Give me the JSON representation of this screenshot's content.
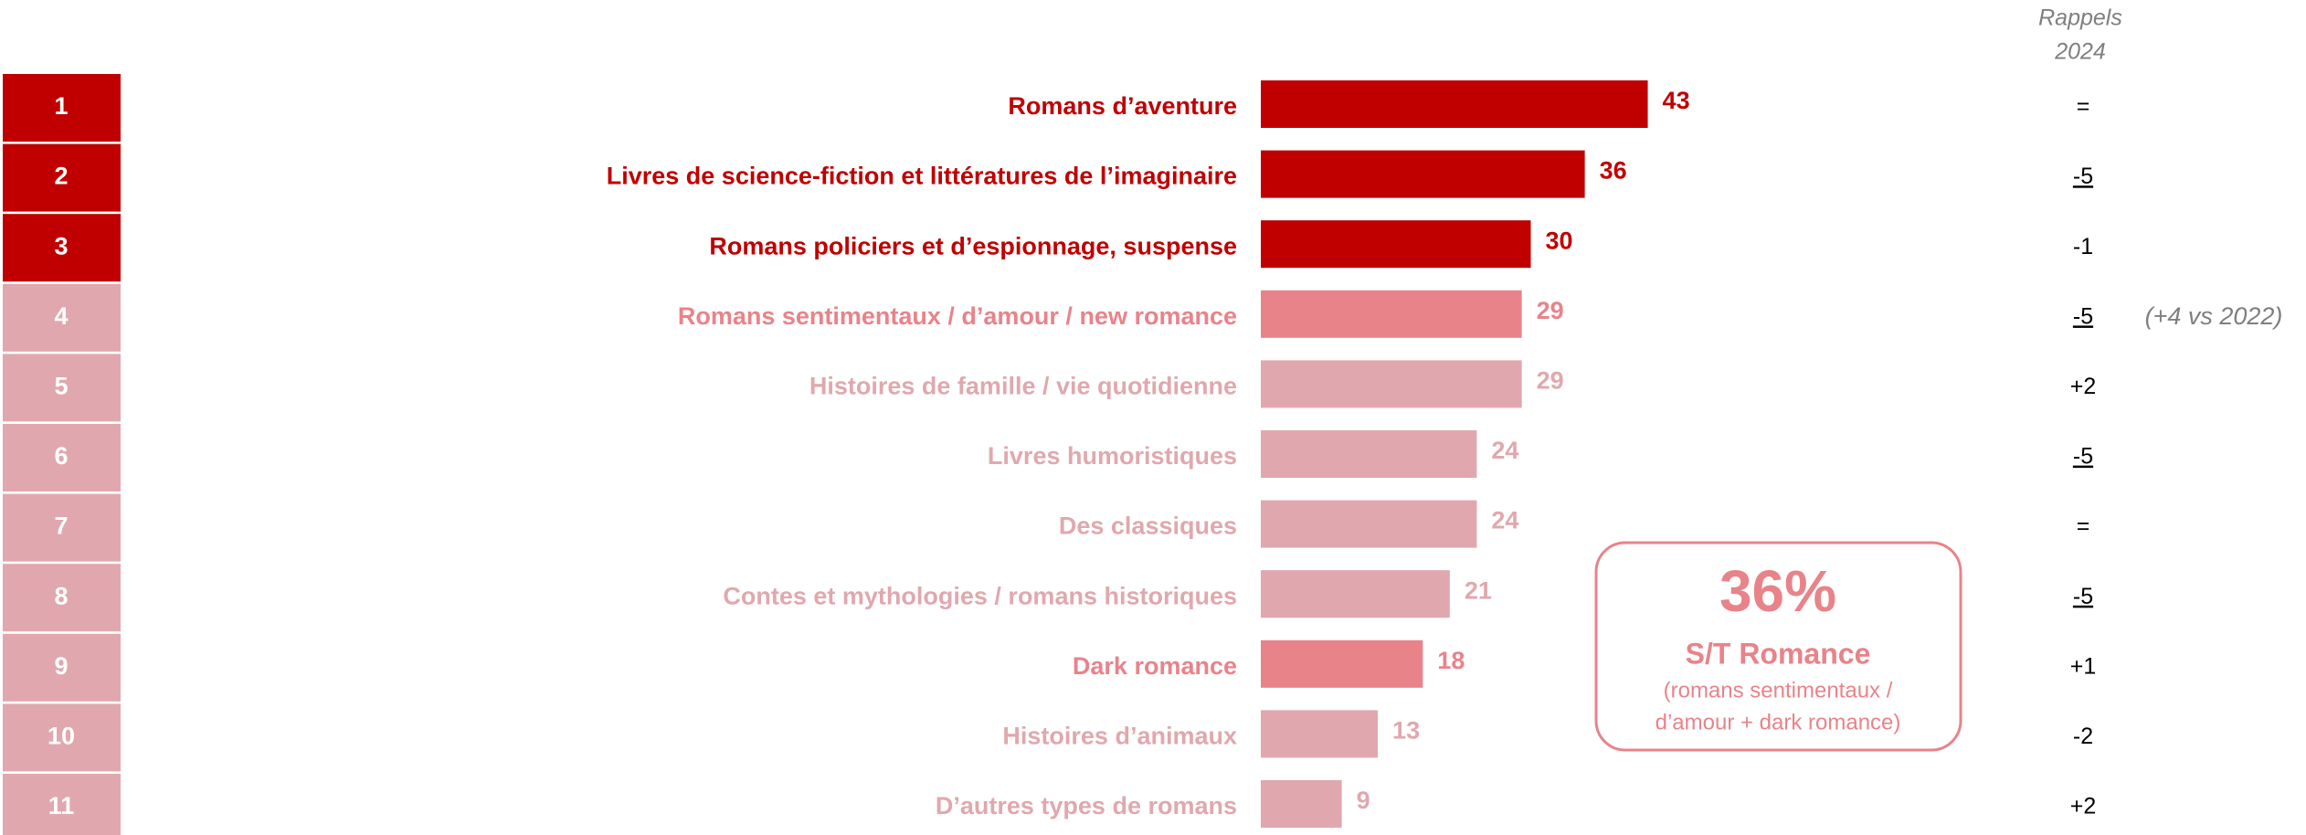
{
  "chart_data": {
    "type": "bar",
    "header": [
      "Rappels",
      "2024"
    ],
    "ranks": [
      "1",
      "2",
      "3",
      "4",
      "5",
      "6",
      "7",
      "8",
      "9",
      "10",
      "11"
    ],
    "categories": [
      "Romans d’aventure",
      "Livres de science-fiction et littératures de l’imaginaire",
      "Romans policiers et d’espionnage, suspense",
      "Romans sentimentaux / d’amour / new romance",
      "Histoires de famille / vie quotidienne",
      "Livres humoristiques",
      "Des classiques",
      "Contes et mythologies / romans historiques",
      "Dark romance",
      "Histoires d’animaux",
      "D’autres types de romans"
    ],
    "values": [
      43,
      36,
      30,
      29,
      29,
      24,
      24,
      21,
      18,
      13,
      9
    ],
    "colors": [
      "#c00000",
      "#c00000",
      "#c00000",
      "#e8838a",
      "#e0a8ae",
      "#e0a8ae",
      "#e0a8ae",
      "#e0a8ae",
      "#e8838a",
      "#e0a8ae",
      "#e0a8ae"
    ],
    "rank_colors": [
      "#c00000",
      "#c00000",
      "#c00000",
      "#e0a8ae",
      "#e0a8ae",
      "#e0a8ae",
      "#e0a8ae",
      "#e0a8ae",
      "#e0a8ae",
      "#e0a8ae",
      "#e0a8ae"
    ],
    "rappels": [
      "=",
      "-5",
      "-1",
      "-5",
      "+2",
      "-5",
      "=",
      "-5",
      "+1",
      "-2",
      "+2"
    ],
    "rappels_underline": [
      false,
      true,
      false,
      true,
      false,
      true,
      false,
      true,
      false,
      false,
      false
    ],
    "row_note": {
      "row": 3,
      "text": "(+4 vs 2022)"
    },
    "callout": {
      "value": "36%",
      "title": "S/T Romance",
      "lines": [
        "(romans sentimentaux /",
        "d’amour + dark romance)"
      ],
      "color": "#e8838a"
    }
  }
}
